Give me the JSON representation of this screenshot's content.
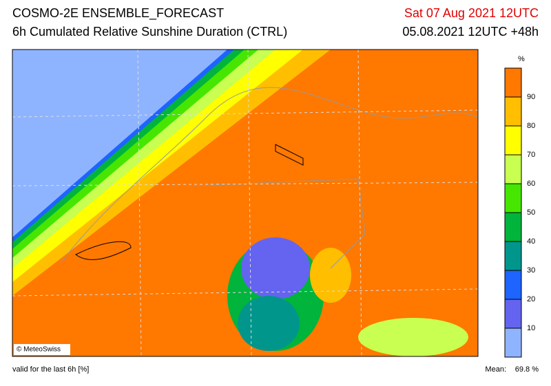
{
  "header": {
    "title": "COSMO-2E ENSEMBLE_FORECAST",
    "subtitle": "6h Cumulated Relative Sunshine Duration (CTRL)",
    "valid_time": "Sat 07 Aug 2021 12UTC",
    "run": "05.08.2021 12UTC +48h"
  },
  "legend": {
    "unit": "%",
    "lim": [
      0,
      100
    ],
    "ticks": [
      10,
      20,
      30,
      40,
      50,
      60,
      70,
      80,
      90
    ],
    "colors": [
      "#8fb4ff",
      "#6464f0",
      "#1e64ff",
      "#00968c",
      "#00b43c",
      "#46e600",
      "#c8ff50",
      "#ffff00",
      "#ffbe00",
      "#ff7800"
    ]
  },
  "copyright": "© MeteoSwiss",
  "footer": {
    "note": "valid for the last 6h [%]",
    "mean": {
      "label": "Mean:",
      "value": 69.8,
      "value_label": "69.8 %"
    }
  }
}
